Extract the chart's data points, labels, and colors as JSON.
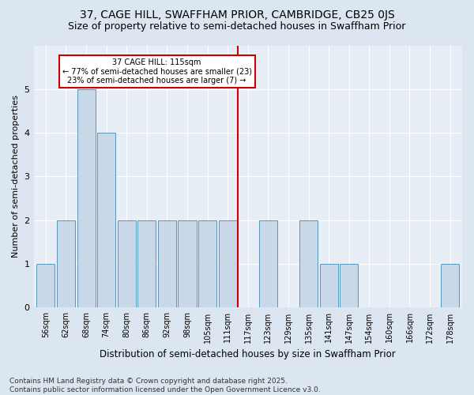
{
  "title": "37, CAGE HILL, SWAFFHAM PRIOR, CAMBRIDGE, CB25 0JS",
  "subtitle": "Size of property relative to semi-detached houses in Swaffham Prior",
  "xlabel": "Distribution of semi-detached houses by size in Swaffham Prior",
  "ylabel": "Number of semi-detached properties",
  "categories": [
    "56sqm",
    "62sqm",
    "68sqm",
    "74sqm",
    "80sqm",
    "86sqm",
    "92sqm",
    "98sqm",
    "105sqm",
    "111sqm",
    "117sqm",
    "123sqm",
    "129sqm",
    "135sqm",
    "141sqm",
    "147sqm",
    "154sqm",
    "160sqm",
    "166sqm",
    "172sqm",
    "178sqm"
  ],
  "values": [
    1,
    2,
    5,
    4,
    2,
    2,
    2,
    2,
    2,
    2,
    0,
    2,
    0,
    2,
    1,
    1,
    0,
    0,
    0,
    0,
    1
  ],
  "bar_color": "#c8d8e8",
  "bar_edge_color": "#5599bb",
  "highlight_index": 10,
  "highlight_line_color": "#cc0000",
  "annotation_text": "37 CAGE HILL: 115sqm\n← 77% of semi-detached houses are smaller (23)\n23% of semi-detached houses are larger (7) →",
  "annotation_box_color": "#ffffff",
  "annotation_box_edge_color": "#cc0000",
  "footnote": "Contains HM Land Registry data © Crown copyright and database right 2025.\nContains public sector information licensed under the Open Government Licence v3.0.",
  "ylim": [
    0,
    6
  ],
  "yticks": [
    0,
    1,
    2,
    3,
    4,
    5
  ],
  "background_color": "#dce6f0",
  "plot_background_color": "#e8eef5",
  "title_fontsize": 10,
  "subtitle_fontsize": 9,
  "footnote_fontsize": 6.5,
  "bar_width": 0.9
}
